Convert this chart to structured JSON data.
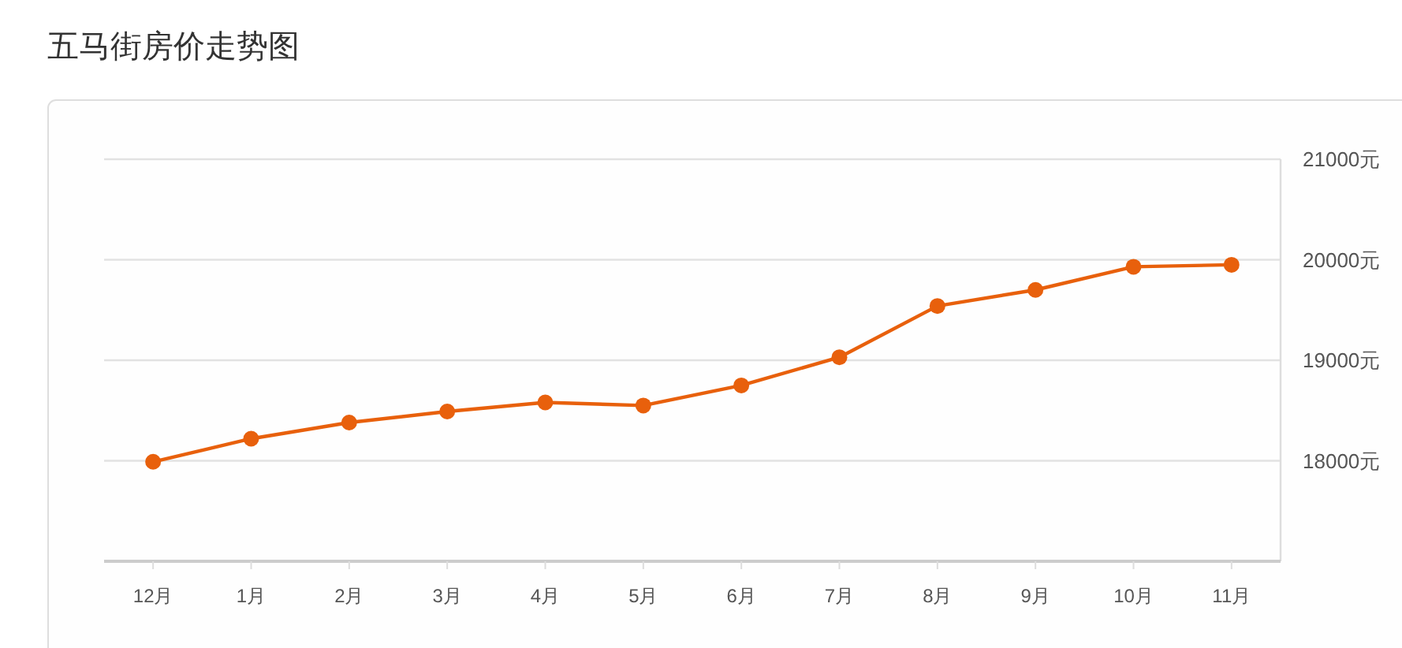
{
  "chart_data": {
    "type": "line",
    "title": "五马街房价走势图",
    "categories": [
      "12月",
      "1月",
      "2月",
      "3月",
      "4月",
      "5月",
      "6月",
      "7月",
      "8月",
      "9月",
      "10月",
      "11月"
    ],
    "series": [
      {
        "color": "#e8600c",
        "values": [
          17990,
          18220,
          18380,
          18490,
          18580,
          18550,
          18750,
          19030,
          19540,
          19700,
          19930,
          19950
        ]
      }
    ],
    "ylim": [
      17000,
      21000
    ],
    "yticks": [
      {
        "value": 18000,
        "label": "18000元"
      },
      {
        "value": 19000,
        "label": "19000元"
      },
      {
        "value": 20000,
        "label": "20000元"
      },
      {
        "value": 21000,
        "label": "21000元"
      }
    ],
    "grid": "y",
    "marker": "circle",
    "line_style": "solid"
  }
}
